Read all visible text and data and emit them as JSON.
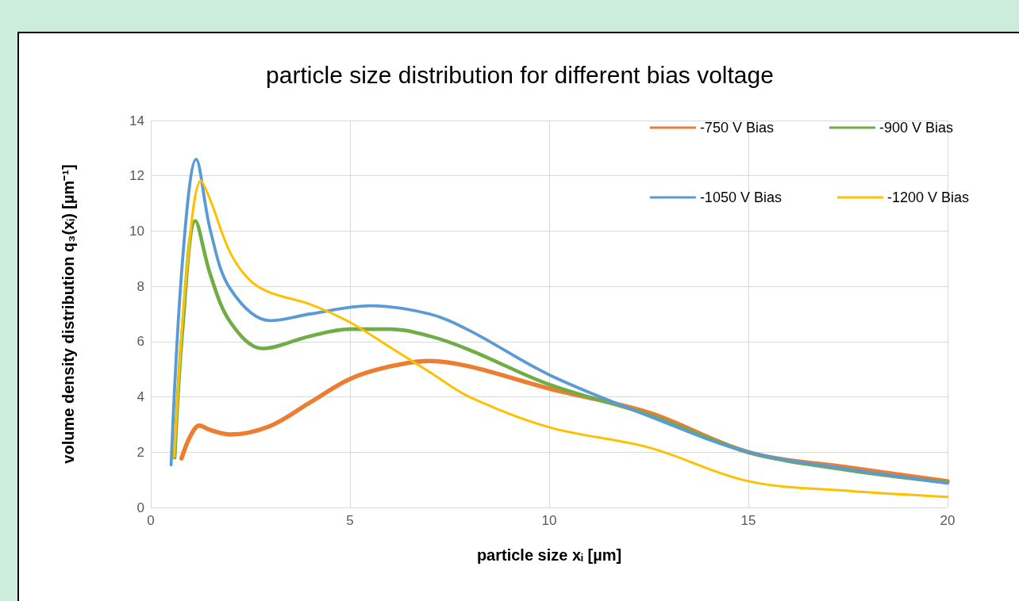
{
  "chart_data": {
    "type": "line",
    "title": "particle size distribution for different bias voltage",
    "xlabel": "particle size xᵢ [µm]",
    "ylabel": "volume density distribution q₃(xᵢ) [µm⁻¹]",
    "xlim": [
      0,
      20
    ],
    "xticks": [
      0,
      5,
      10,
      15,
      20
    ],
    "ylim": [
      0,
      14
    ],
    "yticks": [
      0,
      2,
      4,
      6,
      8,
      10,
      12,
      14
    ],
    "grid": true,
    "legend": "top right",
    "marker": "none",
    "line_style": "solid",
    "series": [
      {
        "name": "-750 V Bias",
        "color": "#ed7d31",
        "x": [
          0.77,
          1.0,
          1.22,
          1.5,
          2.0,
          3,
          4,
          5,
          6,
          7,
          8,
          10,
          12.5,
          15,
          17.5,
          20
        ],
        "values": [
          1.77,
          2.6,
          2.96,
          2.8,
          2.64,
          2.95,
          3.8,
          4.65,
          5.1,
          5.3,
          5.1,
          4.3,
          3.43,
          2.0,
          1.45,
          0.95
        ]
      },
      {
        "name": "-900 V Bias",
        "color": "#70ad47",
        "x": [
          0.6,
          0.8,
          1.12,
          1.5,
          2.0,
          2.8,
          4,
          5,
          6,
          7,
          8,
          10,
          12.5,
          15,
          17.5,
          20
        ],
        "values": [
          1.8,
          6.5,
          10.37,
          8.4,
          6.7,
          5.75,
          6.2,
          6.45,
          6.45,
          6.2,
          5.7,
          4.45,
          3.35,
          2.0,
          1.35,
          0.9
        ]
      },
      {
        "name": "-1050 V Bias",
        "color": "#5b9bd5",
        "x": [
          0.51,
          0.8,
          1.14,
          1.5,
          2.0,
          3.0,
          4,
          5.5,
          7,
          8,
          10,
          12.5,
          15,
          17.5,
          20
        ],
        "values": [
          1.54,
          9.0,
          12.6,
          10.0,
          7.9,
          6.76,
          7.0,
          7.3,
          7.0,
          6.4,
          4.8,
          3.31,
          2.0,
          1.39,
          0.88
        ]
      },
      {
        "name": "-1200 V Bias",
        "color": "#ffc000",
        "x": [
          0.59,
          0.9,
          1.26,
          1.5,
          2.0,
          2.5,
          3,
          4,
          5,
          6,
          7,
          8,
          10,
          12.5,
          15,
          17.5,
          20
        ],
        "values": [
          1.84,
          8.5,
          11.83,
          11.1,
          9.2,
          8.2,
          7.77,
          7.35,
          6.7,
          5.8,
          4.9,
          4.0,
          2.9,
          2.17,
          0.95,
          0.6,
          0.38
        ]
      }
    ]
  }
}
